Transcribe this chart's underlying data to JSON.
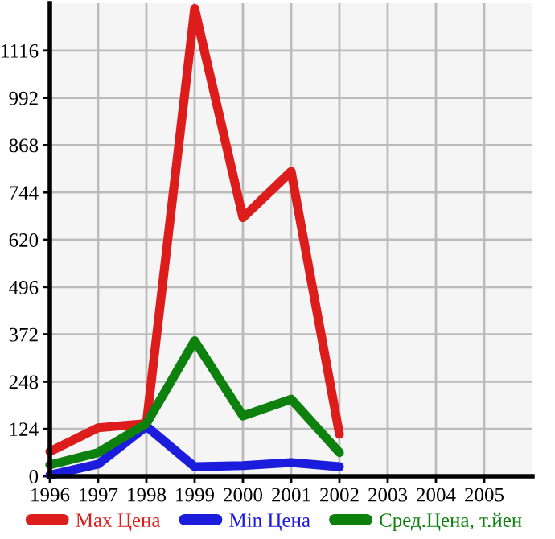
{
  "chart_data": {
    "type": "line",
    "x": [
      1996,
      1997,
      1998,
      1999,
      2000,
      2001,
      2002
    ],
    "series": [
      {
        "name": "Max Цена",
        "color": "#dd1c1c",
        "values": [
          65,
          127,
          138,
          1226,
          678,
          799,
          110
        ]
      },
      {
        "name": "Min Цена",
        "color": "#1c1cdd",
        "values": [
          3,
          32,
          131,
          25,
          28,
          36,
          25
        ]
      },
      {
        "name": "Сред.Цена, т.йен",
        "color": "#0d800d",
        "values": [
          30,
          62,
          138,
          355,
          158,
          202,
          62
        ]
      }
    ],
    "xlim": [
      1996,
      2006
    ],
    "xticks": [
      1996,
      1997,
      1998,
      1999,
      2000,
      2001,
      2002,
      2003,
      2004,
      2005
    ],
    "ylim": [
      0,
      1240
    ],
    "yticks": [
      0,
      124,
      248,
      372,
      496,
      620,
      744,
      868,
      992,
      1116
    ],
    "grid": true,
    "legend": "bottom",
    "marker": "none",
    "line_style": "solid"
  }
}
